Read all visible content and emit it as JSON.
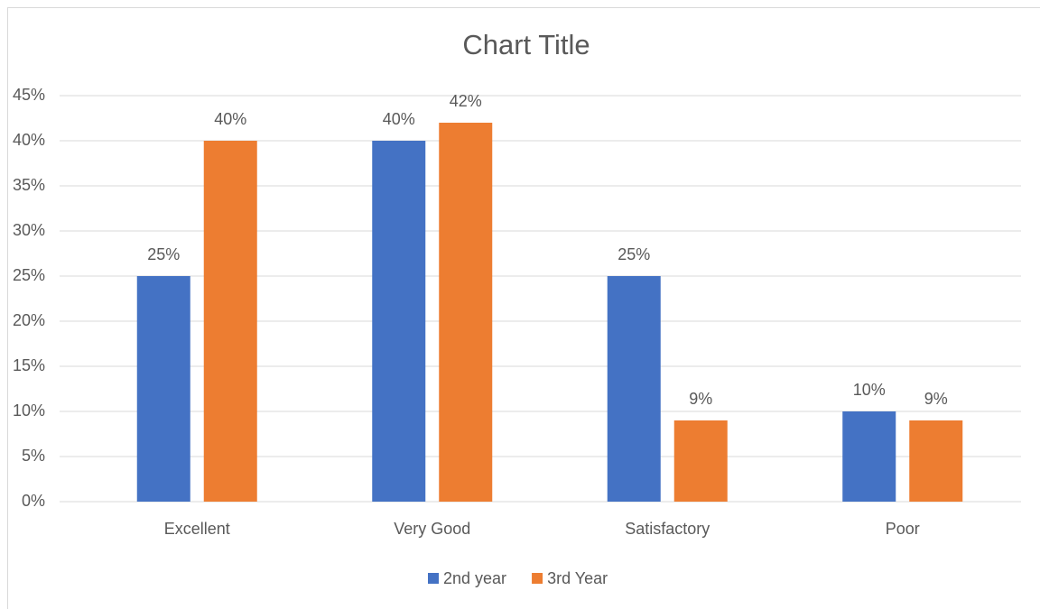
{
  "chart_data": {
    "type": "bar",
    "title": "Chart Title",
    "categories": [
      "Excellent",
      "Very Good",
      "Satisfactory",
      "Poor"
    ],
    "series": [
      {
        "name": "2nd year",
        "color": "#4472c4",
        "values": [
          25,
          40,
          25,
          10
        ],
        "value_labels": [
          "25%",
          "40%",
          "25%",
          "10%"
        ]
      },
      {
        "name": "3rd Year",
        "color": "#ed7d31",
        "values": [
          40,
          42,
          9,
          9
        ],
        "value_labels": [
          "40%",
          "42%",
          "9%",
          "9%"
        ]
      }
    ],
    "ylim": [
      0,
      45
    ],
    "yticks": [
      {
        "value": 0,
        "label": "0%"
      },
      {
        "value": 5,
        "label": "5%"
      },
      {
        "value": 10,
        "label": "10%"
      },
      {
        "value": 15,
        "label": "15%"
      },
      {
        "value": 20,
        "label": "20%"
      },
      {
        "value": 25,
        "label": "25%"
      },
      {
        "value": 30,
        "label": "30%"
      },
      {
        "value": 35,
        "label": "35%"
      },
      {
        "value": 40,
        "label": "40%"
      },
      {
        "value": 45,
        "label": "45%"
      }
    ],
    "grid": true,
    "legend": "bottom"
  }
}
